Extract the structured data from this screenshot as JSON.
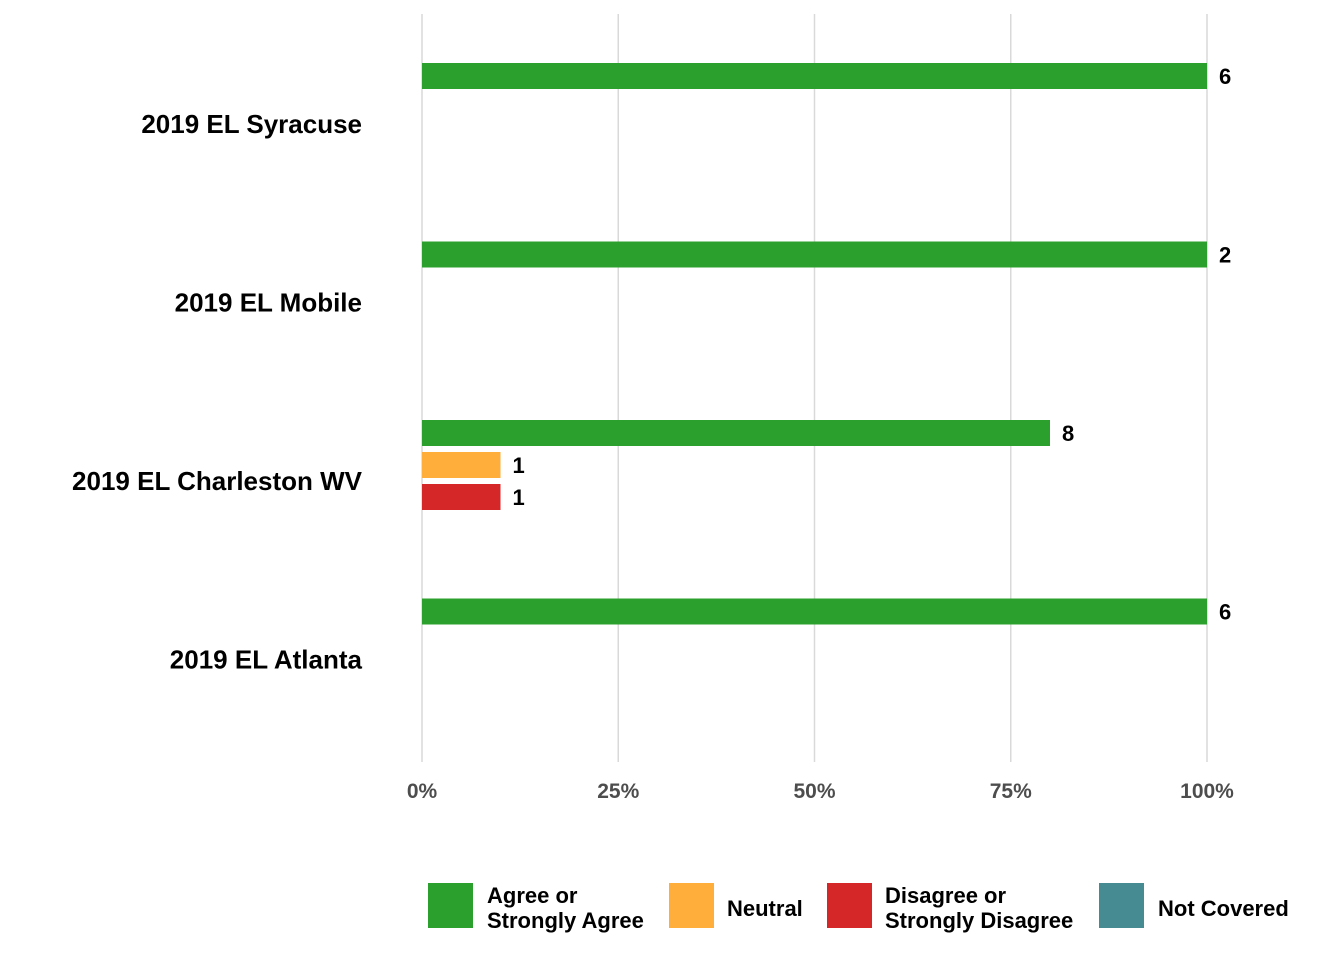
{
  "chart_data": {
    "type": "bar",
    "orientation": "horizontal",
    "categories": [
      "2019 EL Syracuse",
      "2019 EL Mobile",
      "2019 EL Charleston WV",
      "2019 EL Atlanta"
    ],
    "series": [
      {
        "name": "Agree or Strongly Agree",
        "color": "#2ca02c",
        "values": [
          100,
          100,
          80,
          100
        ],
        "counts": [
          "6",
          "2",
          "8",
          "6"
        ]
      },
      {
        "name": "Neutral",
        "color": "#ffae3b",
        "values": [
          0,
          0,
          10,
          0
        ],
        "counts": [
          "",
          "",
          "1",
          ""
        ]
      },
      {
        "name": "Disagree or Strongly Disagree",
        "color": "#d62728",
        "values": [
          0,
          0,
          10,
          0
        ],
        "counts": [
          "",
          "",
          "1",
          ""
        ]
      },
      {
        "name": "Not Covered",
        "color": "#468a92",
        "values": [
          0,
          0,
          0,
          0
        ],
        "counts": [
          "",
          "",
          "",
          ""
        ]
      }
    ],
    "xlim": [
      0,
      100
    ],
    "xticks": [
      0,
      25,
      50,
      75,
      100
    ],
    "xtick_labels": [
      "0%",
      "25%",
      "50%",
      "75%",
      "100%"
    ],
    "grid": true,
    "legend_position": "bottom",
    "legend": [
      {
        "lines": [
          "Agree or",
          "Strongly Agree"
        ],
        "color": "#2ca02c"
      },
      {
        "lines": [
          "Neutral"
        ],
        "color": "#ffae3b"
      },
      {
        "lines": [
          "Disagree or",
          "Strongly Disagree"
        ],
        "color": "#d62728"
      },
      {
        "lines": [
          "Not Covered"
        ],
        "color": "#468a92"
      }
    ]
  }
}
